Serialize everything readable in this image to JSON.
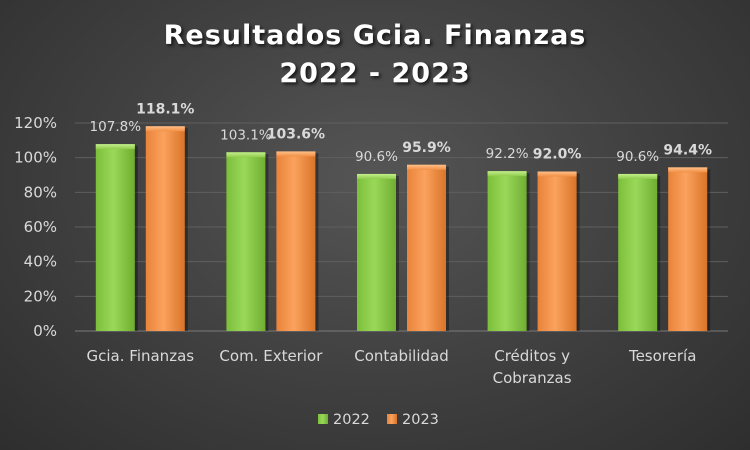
{
  "chart_data": {
    "type": "bar",
    "title_lines": [
      "Resultados Gcia. Finanzas",
      "2022 - 2023"
    ],
    "categories": [
      [
        "Gcia. Finanzas"
      ],
      [
        "Com. Exterior"
      ],
      [
        "Contabilidad"
      ],
      [
        "Créditos y",
        "Cobranzas"
      ],
      [
        "Tesorería"
      ]
    ],
    "series": [
      {
        "name": "2022",
        "values": [
          107.8,
          103.1,
          90.6,
          92.2,
          90.6
        ],
        "labels": [
          "107.8%",
          "103.1%",
          "90.6%",
          "92.2%",
          "90.6%"
        ],
        "color": "#92d050"
      },
      {
        "name": "2023",
        "values": [
          118.1,
          103.6,
          95.9,
          92.0,
          94.4
        ],
        "labels": [
          "118.1%",
          "103.6%",
          "95.9%",
          "92.0%",
          "94.4%"
        ],
        "color": "#f79646"
      }
    ],
    "yticks": [
      "0%",
      "20%",
      "40%",
      "60%",
      "80%",
      "100%",
      "120%"
    ],
    "ylim": [
      0,
      120
    ],
    "unit": "%",
    "grid": true,
    "legend": "bottom",
    "colors": {
      "background": "#404040",
      "text": "#d9d9d9",
      "grid": "#5f5f5f"
    }
  }
}
